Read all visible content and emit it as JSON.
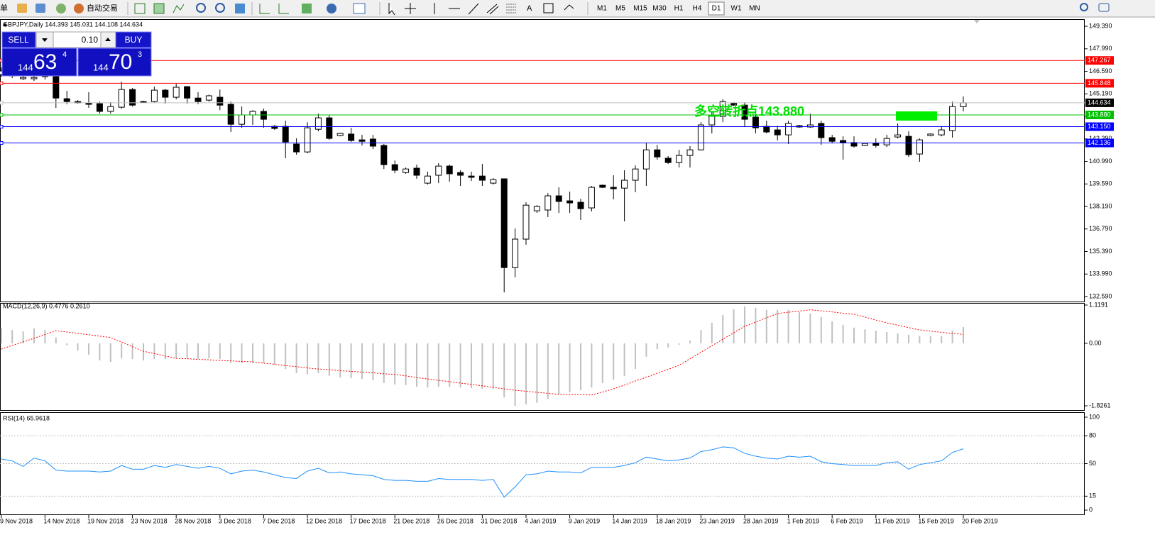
{
  "toolbar": {
    "menu": "单",
    "auto_trading": "自动交易",
    "text_tool": "A",
    "timeframes": [
      "M1",
      "M5",
      "M15",
      "M30",
      "H1",
      "H4",
      "D1",
      "W1",
      "MN"
    ],
    "active_timeframe": 6
  },
  "trade_panel": {
    "sell": "SELL",
    "lot": "0.10",
    "buy": "BUY",
    "bid_big": "144",
    "bid_main": "63",
    "bid_point": "4",
    "ask_big": "144",
    "ask_main": "70",
    "ask_point": "3"
  },
  "chart_data": [
    {
      "type": "candlestick",
      "title": "GBPJPY,Daily  144.393 145.031 144.108 144.634",
      "annotation": "多空转折点143.880",
      "annotation_color": "#00e000",
      "up_color": "#ffffff",
      "down_color": "#000000",
      "categories": [
        "9 Nov 2018",
        null,
        null,
        null,
        "14 Nov 2018",
        null,
        null,
        null,
        "19 Nov 2018",
        null,
        null,
        null,
        "23 Nov 2018",
        null,
        null,
        null,
        "28 Nov 2018",
        null,
        null,
        null,
        "3 Dec 2018",
        null,
        null,
        null,
        "7 Dec 2018",
        null,
        null,
        null,
        "12 Dec 2018",
        null,
        null,
        null,
        "17 Dec 2018",
        null,
        null,
        null,
        "21 Dec 2018",
        null,
        null,
        null,
        "26 Dec 2018",
        null,
        null,
        null,
        "31 Dec 2018",
        null,
        null,
        null,
        "4 Jan 2019",
        null,
        null,
        null,
        "9 Jan 2019",
        null,
        null,
        null,
        "14 Jan 2019",
        null,
        null,
        null,
        "18 Jan 2019",
        null,
        null,
        null,
        "23 Jan 2019",
        null,
        null,
        null,
        "28 Jan 2019",
        null,
        null,
        null,
        "1 Feb 2019",
        null,
        null,
        null,
        "6 Feb 2019",
        null,
        null,
        null,
        "11 Feb 2019",
        null,
        null,
        null,
        "15 Feb 2019",
        null,
        null,
        null,
        "20 Feb 2019"
      ],
      "open": [
        146.39,
        146.3,
        146.13,
        146.13,
        146.43,
        146.26,
        144.89,
        144.71,
        144.63,
        144.58,
        144.1,
        144.36,
        145.46,
        144.71,
        144.71,
        145.42,
        144.98,
        145.64,
        144.93,
        144.8,
        144.98,
        144.54,
        143.3,
        143.88,
        144.1,
        143.17,
        143.17,
        142.07,
        141.58,
        142.99,
        143.7,
        142.6,
        142.69,
        142.33,
        142.38,
        141.98,
        140.79,
        140.3,
        140.57,
        139.64,
        140.13,
        140.7,
        140.3,
        140.08,
        140.08,
        139.64,
        139.91,
        134.39,
        136.16,
        137.92,
        137.97,
        138.85,
        138.54,
        138.45,
        138.1,
        139.51,
        139.38,
        139.33,
        139.82,
        140.52,
        141.71,
        141.19,
        140.92,
        141.36,
        141.71,
        143.26,
        143.79,
        144.63,
        144.49,
        143.74,
        143.17,
        142.95,
        142.64,
        143.21,
        143.13,
        143.35,
        142.47,
        142.29,
        142.16,
        141.98,
        142.11,
        142.02,
        142.51,
        142.55,
        141.45,
        142.6,
        142.64,
        142.91,
        144.393
      ],
      "high": [
        146.83,
        146.61,
        146.35,
        146.39,
        146.61,
        146.43,
        145.38,
        144.8,
        145.29,
        144.71,
        144.67,
        145.95,
        145.55,
        144.76,
        145.64,
        145.51,
        145.82,
        145.68,
        145.29,
        145.15,
        145.46,
        144.71,
        144.4,
        144.18,
        144.27,
        143.26,
        143.52,
        142.42,
        143.43,
        143.96,
        143.88,
        142.77,
        143.08,
        142.64,
        142.64,
        142.07,
        141.05,
        140.61,
        140.79,
        140.35,
        140.88,
        140.79,
        140.44,
        140.35,
        140.83,
        139.95,
        139.91,
        136.82,
        138.45,
        138.27,
        139.02,
        139.38,
        139.11,
        138.67,
        139.47,
        139.55,
        140.13,
        140.44,
        140.74,
        142.16,
        142.02,
        141.32,
        141.71,
        141.94,
        143.43,
        144.1,
        144.85,
        144.67,
        144.67,
        144.14,
        143.52,
        143.21,
        143.52,
        143.26,
        143.96,
        143.52,
        142.64,
        142.55,
        142.55,
        142.16,
        142.42,
        142.64,
        143.35,
        142.86,
        142.42,
        142.73,
        143.17,
        144.71,
        145.031
      ],
      "low": [
        146.26,
        146.17,
        146.04,
        145.99,
        146.08,
        144.32,
        144.54,
        144.58,
        144.32,
        143.96,
        143.96,
        144.27,
        144.4,
        144.63,
        144.63,
        144.58,
        144.85,
        144.58,
        144.54,
        144.71,
        144.18,
        142.82,
        143.08,
        143.26,
        143.08,
        142.95,
        141.19,
        141.41,
        141.49,
        142.86,
        142.33,
        142.55,
        142.2,
        141.98,
        141.76,
        140.52,
        140.26,
        140.22,
        139.91,
        139.55,
        139.64,
        139.73,
        139.47,
        139.77,
        139.47,
        139.55,
        132.85,
        133.78,
        135.81,
        137.79,
        137.53,
        137.79,
        137.79,
        137.35,
        137.88,
        139.33,
        138.63,
        137.26,
        139.07,
        139.47,
        141.1,
        140.83,
        140.61,
        140.61,
        141.67,
        142.73,
        143.43,
        144.45,
        143.17,
        142.73,
        142.73,
        142.29,
        142.07,
        143.08,
        143.08,
        142.02,
        142.11,
        141.1,
        141.85,
        141.94,
        141.85,
        141.89,
        142.42,
        141.27,
        140.97,
        142.55,
        142.55,
        142.47,
        144.108
      ],
      "close": [
        146.61,
        146.48,
        146.21,
        146.21,
        146.26,
        144.93,
        144.71,
        144.63,
        144.54,
        144.1,
        144.4,
        145.46,
        144.49,
        144.67,
        145.42,
        144.98,
        145.6,
        144.93,
        144.71,
        145.07,
        144.49,
        143.3,
        143.88,
        144.1,
        143.61,
        143.04,
        142.2,
        141.58,
        143.08,
        143.7,
        142.42,
        142.73,
        142.29,
        142.24,
        141.94,
        140.79,
        140.44,
        140.52,
        140.13,
        140.08,
        140.7,
        140.22,
        140.13,
        140.0,
        139.82,
        139.86,
        134.39,
        136.16,
        138.27,
        138.19,
        138.85,
        138.5,
        138.41,
        138.05,
        139.38,
        139.38,
        139.29,
        139.82,
        140.52,
        141.71,
        141.27,
        140.92,
        141.36,
        141.71,
        143.26,
        143.79,
        144.71,
        144.49,
        143.61,
        143.08,
        142.82,
        142.64,
        143.35,
        143.13,
        143.26,
        142.47,
        142.24,
        142.16,
        141.94,
        142.11,
        141.98,
        142.42,
        142.64,
        141.41,
        142.33,
        142.69,
        142.95,
        144.4,
        144.634
      ],
      "ylim": [
        132.28,
        149.79
      ],
      "yticks": [
        {
          "value": 149.39,
          "label": "149.390"
        },
        {
          "value": 147.99,
          "label": "147.990"
        },
        {
          "value": 146.59,
          "label": "146.590"
        },
        {
          "value": 145.19,
          "label": "145.190"
        },
        {
          "value": 143.79,
          "label": "143.790"
        },
        {
          "value": 142.39,
          "label": "142.390"
        },
        {
          "value": 140.99,
          "label": "140.990"
        },
        {
          "value": 139.59,
          "label": "139.590"
        },
        {
          "value": 138.19,
          "label": "138.190"
        },
        {
          "value": 136.79,
          "label": "136.790"
        },
        {
          "value": 135.39,
          "label": "135.390"
        },
        {
          "value": 133.99,
          "label": "133.990"
        },
        {
          "value": 132.59,
          "label": "132.590"
        }
      ],
      "levels": [
        {
          "value": 147.267,
          "color": "#ff0000",
          "label_color": "#ff0000"
        },
        {
          "value": 145.848,
          "color": "#ff0000",
          "label_color": "#ff0000"
        },
        {
          "value": 144.634,
          "color": "#c0c0c0",
          "label_color": "#000000"
        },
        {
          "value": 143.88,
          "label": "143.880",
          "color": "#00c000",
          "label_color": "#00c000"
        },
        {
          "value": 143.15,
          "label": "143.150",
          "color": "#0000ff",
          "label_color": "#0000ff"
        },
        {
          "value": 142.136,
          "color": "#0000ff",
          "label_color": "#0000ff"
        }
      ]
    },
    {
      "type": "macd",
      "title": "MACD(12,26,9) 0.4776 0.2610",
      "color": "#c0c0c0",
      "signal_color": "#ff0000",
      "values": [
        0.46,
        0.39,
        0.35,
        0.44,
        0.39,
        0.17,
        -0.06,
        -0.21,
        -0.33,
        -0.5,
        -0.54,
        -0.44,
        -0.46,
        -0.5,
        -0.46,
        -0.46,
        -0.44,
        -0.44,
        -0.46,
        -0.44,
        -0.46,
        -0.58,
        -0.58,
        -0.58,
        -0.58,
        -0.62,
        -0.75,
        -0.87,
        -0.91,
        -0.87,
        -0.95,
        -1.0,
        -1.02,
        -1.04,
        -1.08,
        -1.16,
        -1.2,
        -1.22,
        -1.27,
        -1.29,
        -1.27,
        -1.27,
        -1.29,
        -1.31,
        -1.33,
        -1.33,
        -1.58,
        -1.83,
        -1.78,
        -1.74,
        -1.62,
        -1.49,
        -1.43,
        -1.37,
        -1.29,
        -1.16,
        -1.06,
        -0.95,
        -0.75,
        -0.39,
        -0.17,
        -0.12,
        -0.04,
        0.08,
        0.39,
        0.6,
        0.83,
        1.0,
        1.08,
        1.04,
        0.98,
        0.98,
        0.98,
        0.91,
        0.87,
        0.77,
        0.64,
        0.54,
        0.46,
        0.41,
        0.37,
        0.33,
        0.29,
        0.25,
        0.21,
        0.21,
        0.21,
        0.37,
        0.4776
      ],
      "signal": [
        -0.17,
        -0.06,
        0.04,
        0.15,
        0.26,
        0.37,
        0.33,
        0.29,
        0.25,
        0.21,
        0.17,
        0.04,
        -0.1,
        -0.23,
        -0.3,
        -0.37,
        -0.44,
        -0.45,
        -0.47,
        -0.48,
        -0.5,
        -0.51,
        -0.53,
        -0.54,
        -0.58,
        -0.61,
        -0.65,
        -0.68,
        -0.72,
        -0.75,
        -0.77,
        -0.8,
        -0.82,
        -0.84,
        -0.86,
        -0.89,
        -0.91,
        -0.95,
        -1.0,
        -1.04,
        -1.08,
        -1.12,
        -1.16,
        -1.2,
        -1.24,
        -1.29,
        -1.33,
        -1.37,
        -1.4,
        -1.43,
        -1.46,
        -1.49,
        -1.5,
        -1.5,
        -1.51,
        -1.42,
        -1.33,
        -1.22,
        -1.1,
        -0.99,
        -0.87,
        -0.76,
        -0.64,
        -0.45,
        -0.26,
        -0.07,
        0.12,
        0.31,
        0.5,
        0.62,
        0.75,
        0.87,
        0.91,
        0.94,
        0.98,
        0.95,
        0.92,
        0.88,
        0.85,
        0.77,
        0.68,
        0.6,
        0.53,
        0.46,
        0.39,
        0.36,
        0.32,
        0.29,
        0.261
      ],
      "ylim": [
        -1.95,
        1.16
      ],
      "yticks": [
        1.1191,
        {
          "value": 0,
          "label": "0.00"
        },
        -1.8261
      ]
    },
    {
      "type": "line",
      "title": "RSI(14) 65.9618",
      "color": "#1e90ff",
      "values": [
        55,
        53,
        47,
        56,
        53,
        43,
        42,
        42,
        42,
        41,
        42,
        48,
        44,
        44,
        48,
        46,
        49,
        47,
        45,
        47,
        45,
        39,
        42,
        43,
        41,
        38,
        35,
        34,
        42,
        45,
        40,
        41,
        39,
        38,
        37,
        33,
        32,
        32,
        31,
        31,
        34,
        33,
        33,
        33,
        32,
        33,
        14,
        25,
        38,
        39,
        42,
        41,
        41,
        40,
        46,
        46,
        46,
        48,
        51,
        57,
        55,
        53,
        54,
        56,
        63,
        65,
        68,
        67,
        61,
        58,
        56,
        55,
        58,
        57,
        58,
        52,
        50,
        49,
        48,
        48,
        48,
        51,
        52,
        44,
        49,
        51,
        53,
        62,
        65.9618
      ],
      "ylim": [
        -4.58,
        104.58
      ],
      "yticks": [
        100,
        80,
        50,
        15,
        0
      ],
      "levels": [
        80,
        50,
        15
      ]
    }
  ]
}
